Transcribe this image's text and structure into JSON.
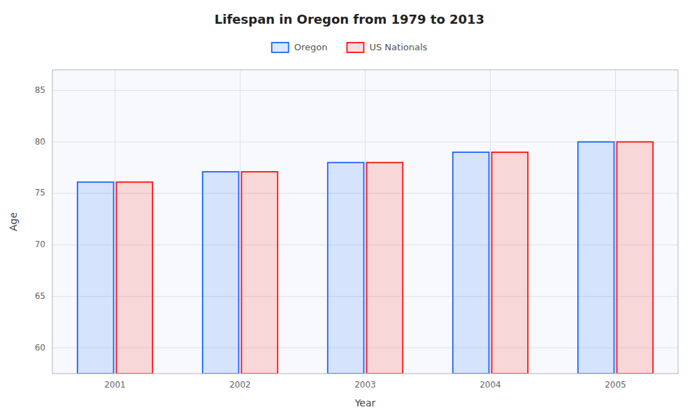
{
  "chart_data": {
    "type": "bar",
    "title": "Lifespan in Oregon from 1979 to 2013",
    "x_label": "Year",
    "y_label": "Age",
    "categories": [
      "2001",
      "2002",
      "2003",
      "2004",
      "2005"
    ],
    "series": [
      {
        "name": "Oregon",
        "color": "#1a66ff",
        "values": [
          76.1,
          77.1,
          78.0,
          79.0,
          80.0
        ]
      },
      {
        "name": "US Nationals",
        "color": "#ff1111",
        "values": [
          76.1,
          77.1,
          78.0,
          79.0,
          80.0
        ]
      }
    ],
    "ylim": [
      57.5,
      87
    ],
    "yticks": [
      60,
      65,
      70,
      75,
      80,
      85
    ],
    "grid": true,
    "legend": "top"
  }
}
